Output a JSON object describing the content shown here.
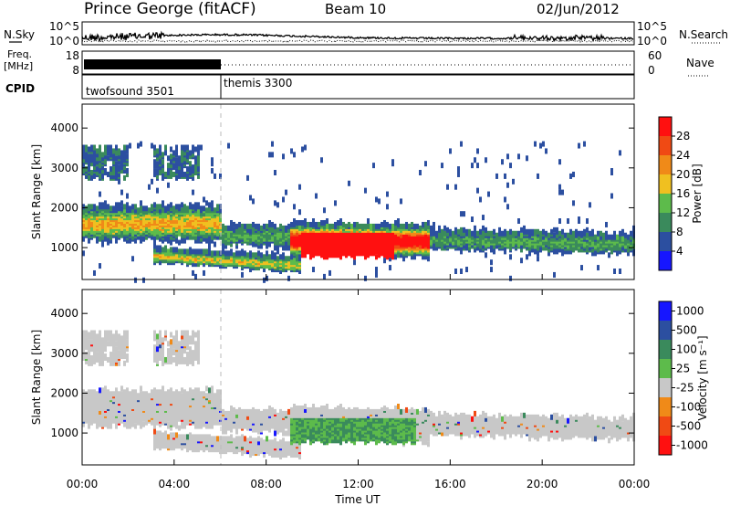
{
  "header": {
    "station": "Prince George (fitACF)",
    "beam": "Beam 10",
    "date": "02/Jun/2012"
  },
  "colors": {
    "power_scale": [
      "#1616ff",
      "#2c4fa0",
      "#3a8a5c",
      "#5dbb4b",
      "#f0c020",
      "#f08a18",
      "#f04a14",
      "#ff1010"
    ],
    "velocity_scale": [
      "#1616ff",
      "#2c4fa0",
      "#3a8a5c",
      "#5dbb4b",
      "#c8c8c8",
      "#f08a18",
      "#f04a14",
      "#ff1010"
    ]
  },
  "chart_data": [
    {
      "id": "noise",
      "type": "line",
      "left_label": "N.Sky",
      "right_label": "N.Search",
      "left_ticks": [
        "10^5",
        "10^0"
      ],
      "right_ticks": [
        "10^5",
        "10^0"
      ]
    },
    {
      "id": "frequency",
      "type": "line",
      "left_label": "Freq.",
      "left_unit": "[MHz]",
      "right_label": "Nave",
      "left_ticks": [
        "18",
        "8"
      ],
      "right_ticks": [
        "60",
        "0"
      ]
    },
    {
      "id": "cpid",
      "type": "table",
      "left_label": "CPID",
      "segments": [
        {
          "label": "twofsound 3501",
          "start_hour": 0,
          "end_hour": 6
        },
        {
          "label": "themis 3300",
          "start_hour": 6,
          "end_hour": 24
        }
      ]
    },
    {
      "id": "power",
      "type": "heatmap",
      "ylabel": "Slant Range [km]",
      "xlim": [
        0,
        24
      ],
      "ylim": [
        200,
        4600
      ],
      "yticks": [
        1000,
        2000,
        3000,
        4000
      ],
      "colorbar_label": "Power [dB]",
      "colorbar_ticks": [
        "4",
        "8",
        "12",
        "16",
        "20",
        "24",
        "28"
      ]
    },
    {
      "id": "velocity",
      "type": "heatmap",
      "ylabel": "Slant Range [km]",
      "xlabel": "Time UT",
      "xlim": [
        0,
        24
      ],
      "ylim": [
        200,
        4600
      ],
      "xticks": [
        "00:00",
        "04:00",
        "08:00",
        "12:00",
        "16:00",
        "20:00",
        "00:00"
      ],
      "yticks": [
        1000,
        2000,
        3000,
        4000
      ],
      "colorbar_label": "Velocity [m s⁻¹]",
      "colorbar_ticks": [
        "1000",
        "500",
        "100",
        "25",
        "-25",
        "-100",
        "-500",
        "-1000"
      ]
    }
  ]
}
